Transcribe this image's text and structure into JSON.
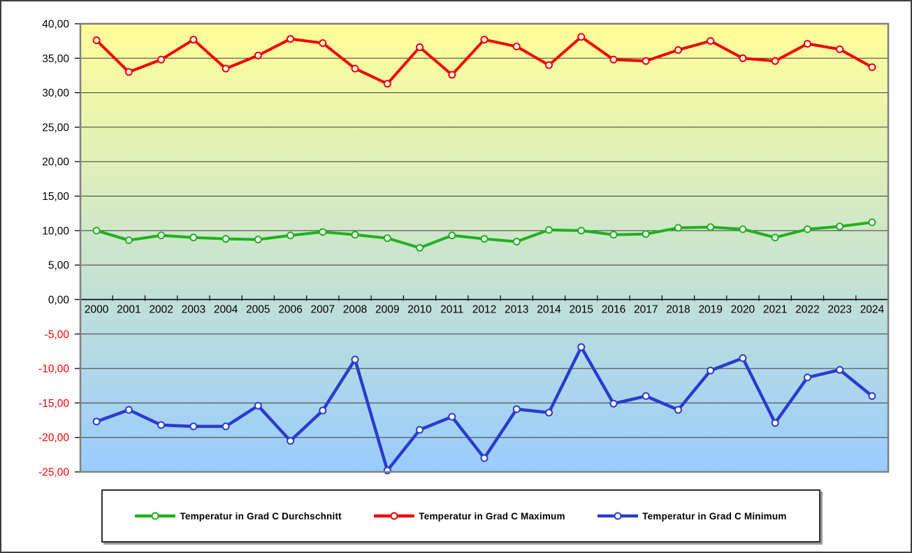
{
  "window": {
    "background_color": "#FFFFFF",
    "border_color": "#3D3D3D"
  },
  "chart_data": {
    "type": "line",
    "title": "",
    "xlabel": "",
    "ylabel": "",
    "legend_position": "bottom",
    "grid": "horizontal",
    "categories": [
      2000,
      2001,
      2002,
      2003,
      2004,
      2005,
      2006,
      2007,
      2008,
      2009,
      2010,
      2011,
      2012,
      2013,
      2014,
      2015,
      2016,
      2017,
      2018,
      2019,
      2020,
      2021,
      2022,
      2023,
      2024
    ],
    "series": [
      {
        "name": "Temperatur in Grad C Durchschnitt",
        "color": "#1FB11F",
        "marker": "circle-white",
        "values": [
          10.0,
          8.6,
          9.3,
          9.0,
          8.8,
          8.7,
          9.3,
          9.8,
          9.4,
          8.9,
          7.5,
          9.3,
          8.8,
          8.4,
          10.1,
          10.0,
          9.4,
          9.5,
          10.4,
          10.5,
          10.2,
          9.0,
          10.2,
          10.6,
          11.2
        ]
      },
      {
        "name": "Temperatur in Grad C Maximum",
        "color": "#EE0000",
        "marker": "circle-white",
        "values": [
          37.6,
          33.0,
          34.8,
          37.7,
          33.5,
          35.4,
          37.8,
          37.2,
          33.5,
          31.3,
          36.6,
          32.6,
          37.7,
          36.7,
          34.0,
          38.1,
          34.8,
          34.6,
          36.2,
          37.5,
          35.0,
          34.6,
          37.1,
          36.3,
          33.7
        ]
      },
      {
        "name": "Temperatur in Grad C Minimum",
        "color": "#2A3CCE",
        "marker": "circle-white",
        "values": [
          -17.7,
          -16.0,
          -18.2,
          -18.4,
          -18.4,
          -15.4,
          -20.5,
          -16.1,
          -8.7,
          -24.8,
          -18.9,
          -17.0,
          -23.0,
          -15.9,
          -16.4,
          -6.9,
          -15.1,
          -14.0,
          -16.0,
          -10.3,
          -8.5,
          -17.9,
          -11.3,
          -10.2,
          -14.0
        ]
      }
    ],
    "y_axis": {
      "min": -25,
      "max": 40,
      "step": 5,
      "decimal_separator": ",",
      "decimals": 2,
      "positive_label_color": "#000000",
      "negative_label_color": "#FF0000",
      "tick_labels": [
        "40,00",
        "35,00",
        "30,00",
        "25,00",
        "20,00",
        "15,00",
        "10,00",
        "5,00",
        "0,00",
        "-5,00",
        "-10,00",
        "-15,00",
        "-20,00",
        "-25,00"
      ]
    },
    "x_axis": {
      "label_color": "#000000",
      "axis_at_value": 0
    },
    "plot_style": {
      "gradient_top": "#FFFF99",
      "gradient_bottom": "#99CCFF",
      "grid_color": "#3A3A3A",
      "border_color": "#808080",
      "zero_axis_color": "#000000"
    }
  }
}
